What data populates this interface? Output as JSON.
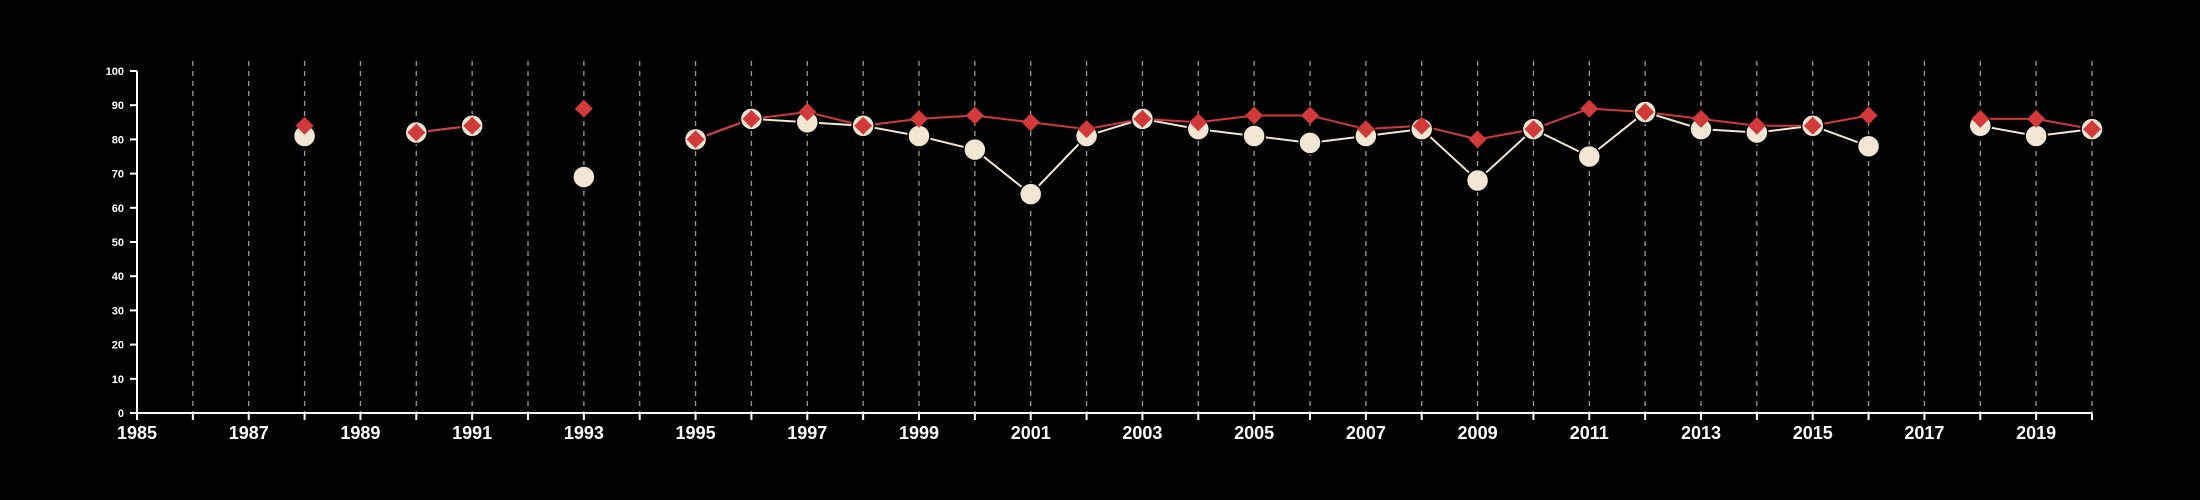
{
  "chart_data": {
    "type": "line",
    "title": "",
    "xlabel": "",
    "ylabel": "",
    "xlim": [
      1985,
      2020
    ],
    "ylim": [
      0,
      100
    ],
    "x_ticks": [
      {
        "value": 1985,
        "label": "1985"
      },
      {
        "value": 1987,
        "label": "1987"
      },
      {
        "value": 1989,
        "label": "1989"
      },
      {
        "value": 1991,
        "label": "1991"
      },
      {
        "value": 1993,
        "label": "1993"
      },
      {
        "value": 1995,
        "label": "1995"
      },
      {
        "value": 1997,
        "label": "1997"
      },
      {
        "value": 1999,
        "label": "1999"
      },
      {
        "value": 2001,
        "label": "2001"
      },
      {
        "value": 2003,
        "label": "2003"
      },
      {
        "value": 2005,
        "label": "2005"
      },
      {
        "value": 2007,
        "label": "2007"
      },
      {
        "value": 2009,
        "label": "2009"
      },
      {
        "value": 2011,
        "label": "2011"
      },
      {
        "value": 2013,
        "label": "2013"
      },
      {
        "value": 2015,
        "label": "2015"
      },
      {
        "value": 2017,
        "label": "2017"
      },
      {
        "value": 2019,
        "label": "2019"
      }
    ],
    "y_ticks": [
      {
        "value": 0,
        "label": "0"
      },
      {
        "value": 10,
        "label": "10"
      },
      {
        "value": 20,
        "label": "20"
      },
      {
        "value": 30,
        "label": "30"
      },
      {
        "value": 40,
        "label": "40"
      },
      {
        "value": 50,
        "label": "50"
      },
      {
        "value": 60,
        "label": "60"
      },
      {
        "value": 70,
        "label": "70"
      },
      {
        "value": 80,
        "label": "80"
      },
      {
        "value": 90,
        "label": "90"
      },
      {
        "value": 100,
        "label": "100"
      }
    ],
    "grid": "vertical dashed at every year",
    "legend": "none",
    "series": [
      {
        "marker": "circle",
        "color": "#f3e6d3",
        "points": [
          [
            1988,
            81
          ],
          [
            1990,
            82
          ],
          [
            1991,
            84
          ],
          [
            1993,
            69
          ],
          [
            1995,
            80
          ],
          [
            1996,
            86
          ],
          [
            1997,
            85
          ],
          [
            1998,
            84
          ],
          [
            1999,
            81
          ],
          [
            2000,
            77
          ],
          [
            2001,
            64
          ],
          [
            2002,
            81
          ],
          [
            2003,
            86
          ],
          [
            2004,
            83
          ],
          [
            2005,
            81
          ],
          [
            2006,
            79
          ],
          [
            2007,
            81
          ],
          [
            2008,
            83
          ],
          [
            2009,
            68
          ],
          [
            2010,
            83
          ],
          [
            2011,
            75
          ],
          [
            2012,
            88
          ],
          [
            2013,
            83
          ],
          [
            2014,
            82
          ],
          [
            2015,
            84
          ],
          [
            2016,
            78
          ],
          [
            2018,
            84
          ],
          [
            2019,
            81
          ],
          [
            2020,
            83
          ]
        ]
      },
      {
        "marker": "diamond",
        "color": "#d23a3a",
        "points": [
          [
            1988,
            84
          ],
          [
            1990,
            82
          ],
          [
            1991,
            84
          ],
          [
            1993,
            89
          ],
          [
            1995,
            80
          ],
          [
            1996,
            86
          ],
          [
            1997,
            88
          ],
          [
            1998,
            84
          ],
          [
            1999,
            86
          ],
          [
            2000,
            87
          ],
          [
            2001,
            85
          ],
          [
            2002,
            83
          ],
          [
            2003,
            86
          ],
          [
            2004,
            85
          ],
          [
            2005,
            87
          ],
          [
            2006,
            87
          ],
          [
            2007,
            83
          ],
          [
            2008,
            84
          ],
          [
            2009,
            80
          ],
          [
            2010,
            83
          ],
          [
            2011,
            89
          ],
          [
            2012,
            88
          ],
          [
            2013,
            86
          ],
          [
            2014,
            84
          ],
          [
            2015,
            84
          ],
          [
            2016,
            87
          ],
          [
            2018,
            86
          ],
          [
            2019,
            86
          ],
          [
            2020,
            83
          ]
        ]
      }
    ]
  },
  "colors": {
    "background": "#000000",
    "axis": "#ffffff",
    "grid": "#9a9a9a"
  }
}
